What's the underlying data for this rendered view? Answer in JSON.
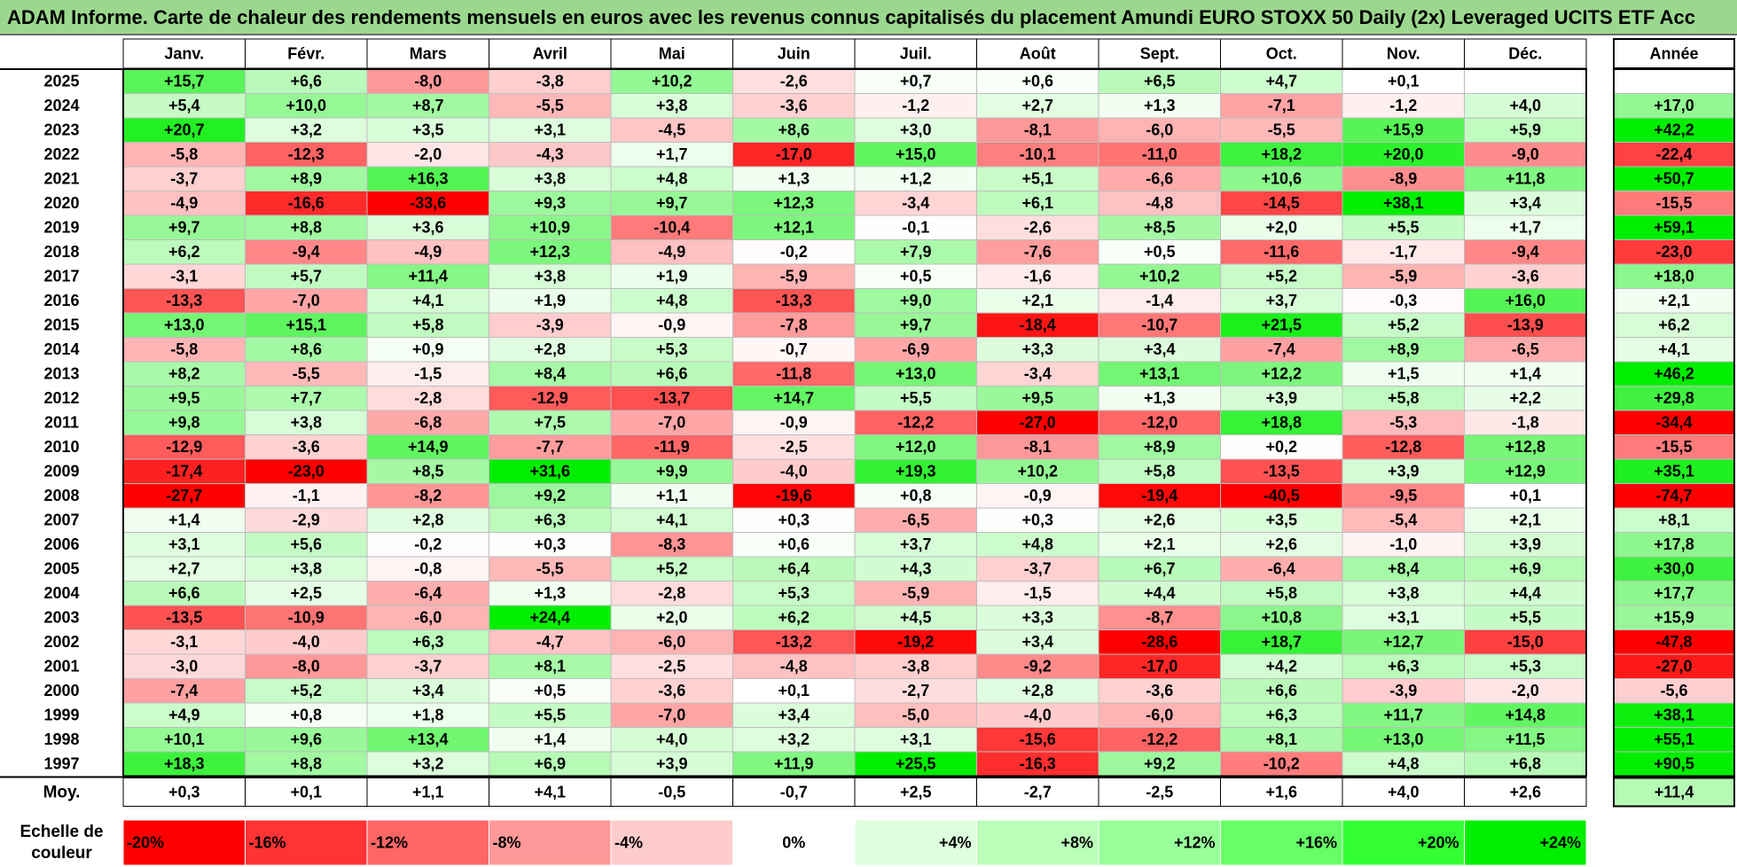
{
  "title": "ADAM Informe. Carte de chaleur des rendements mensuels en euros avec les revenus connus capitalisés du placement Amundi EURO STOXX 50 Daily (2x) Leveraged UCITS ETF Acc",
  "chart_data": {
    "type": "heatmap",
    "months": [
      "Janv.",
      "Févr.",
      "Mars",
      "Avril",
      "Mai",
      "Juin",
      "Juil.",
      "Août",
      "Sept.",
      "Oct.",
      "Nov.",
      "Déc."
    ],
    "year_column_label": "Année",
    "average_label": "Moy.",
    "rows": [
      {
        "year": "2025",
        "values": [
          "+15,7",
          "+6,6",
          "-8,0",
          "-3,8",
          "+10,2",
          "-2,6",
          "+0,7",
          "+0,6",
          "+6,5",
          "+4,7",
          "+0,1",
          ""
        ],
        "annual": ""
      },
      {
        "year": "2024",
        "values": [
          "+5,4",
          "+10,0",
          "+8,7",
          "-5,5",
          "+3,8",
          "-3,6",
          "-1,2",
          "+2,7",
          "+1,3",
          "-7,1",
          "-1,2",
          "+4,0"
        ],
        "annual": "+17,0"
      },
      {
        "year": "2023",
        "values": [
          "+20,7",
          "+3,2",
          "+3,5",
          "+3,1",
          "-4,5",
          "+8,6",
          "+3,0",
          "-8,1",
          "-6,0",
          "-5,5",
          "+15,9",
          "+5,9"
        ],
        "annual": "+42,2"
      },
      {
        "year": "2022",
        "values": [
          "-5,8",
          "-12,3",
          "-2,0",
          "-4,3",
          "+1,7",
          "-17,0",
          "+15,0",
          "-10,1",
          "-11,0",
          "+18,2",
          "+20,0",
          "-9,0"
        ],
        "annual": "-22,4"
      },
      {
        "year": "2021",
        "values": [
          "-3,7",
          "+8,9",
          "+16,3",
          "+3,8",
          "+4,8",
          "+1,3",
          "+1,2",
          "+5,1",
          "-6,6",
          "+10,6",
          "-8,9",
          "+11,8"
        ],
        "annual": "+50,7"
      },
      {
        "year": "2020",
        "values": [
          "-4,9",
          "-16,6",
          "-33,6",
          "+9,3",
          "+9,7",
          "+12,3",
          "-3,4",
          "+6,1",
          "-4,8",
          "-14,5",
          "+38,1",
          "+3,4"
        ],
        "annual": "-15,5"
      },
      {
        "year": "2019",
        "values": [
          "+9,7",
          "+8,8",
          "+3,6",
          "+10,9",
          "-10,4",
          "+12,1",
          "-0,1",
          "-2,6",
          "+8,5",
          "+2,0",
          "+5,5",
          "+1,7"
        ],
        "annual": "+59,1"
      },
      {
        "year": "2018",
        "values": [
          "+6,2",
          "-9,4",
          "-4,9",
          "+12,3",
          "-4,9",
          "-0,2",
          "+7,9",
          "-7,6",
          "+0,5",
          "-11,6",
          "-1,7",
          "-9,4"
        ],
        "annual": "-23,0"
      },
      {
        "year": "2017",
        "values": [
          "-3,1",
          "+5,7",
          "+11,4",
          "+3,8",
          "+1,9",
          "-5,9",
          "+0,5",
          "-1,6",
          "+10,2",
          "+5,2",
          "-5,9",
          "-3,6"
        ],
        "annual": "+18,0"
      },
      {
        "year": "2016",
        "values": [
          "-13,3",
          "-7,0",
          "+4,1",
          "+1,9",
          "+4,8",
          "-13,3",
          "+9,0",
          "+2,1",
          "-1,4",
          "+3,7",
          "-0,3",
          "+16,0"
        ],
        "annual": "+2,1"
      },
      {
        "year": "2015",
        "values": [
          "+13,0",
          "+15,1",
          "+5,8",
          "-3,9",
          "-0,9",
          "-7,8",
          "+9,7",
          "-18,4",
          "-10,7",
          "+21,5",
          "+5,2",
          "-13,9"
        ],
        "annual": "+6,2"
      },
      {
        "year": "2014",
        "values": [
          "-5,8",
          "+8,6",
          "+0,9",
          "+2,8",
          "+5,3",
          "-0,7",
          "-6,9",
          "+3,3",
          "+3,4",
          "-7,4",
          "+8,9",
          "-6,5"
        ],
        "annual": "+4,1"
      },
      {
        "year": "2013",
        "values": [
          "+8,2",
          "-5,5",
          "-1,5",
          "+8,4",
          "+6,6",
          "-11,8",
          "+13,0",
          "-3,4",
          "+13,1",
          "+12,2",
          "+1,5",
          "+1,4"
        ],
        "annual": "+46,2"
      },
      {
        "year": "2012",
        "values": [
          "+9,5",
          "+7,7",
          "-2,8",
          "-12,9",
          "-13,7",
          "+14,7",
          "+5,5",
          "+9,5",
          "+1,3",
          "+3,9",
          "+5,8",
          "+2,2"
        ],
        "annual": "+29,8"
      },
      {
        "year": "2011",
        "values": [
          "+9,8",
          "+3,8",
          "-6,8",
          "+7,5",
          "-7,0",
          "-0,9",
          "-12,2",
          "-27,0",
          "-12,0",
          "+18,8",
          "-5,3",
          "-1,8"
        ],
        "annual": "-34,4"
      },
      {
        "year": "2010",
        "values": [
          "-12,9",
          "-3,6",
          "+14,9",
          "-7,7",
          "-11,9",
          "-2,5",
          "+12,0",
          "-8,1",
          "+8,9",
          "+0,2",
          "-12,8",
          "+12,8"
        ],
        "annual": "-15,5"
      },
      {
        "year": "2009",
        "values": [
          "-17,4",
          "-23,0",
          "+8,5",
          "+31,6",
          "+9,9",
          "-4,0",
          "+19,3",
          "+10,2",
          "+5,8",
          "-13,5",
          "+3,9",
          "+12,9"
        ],
        "annual": "+35,1"
      },
      {
        "year": "2008",
        "values": [
          "-27,7",
          "-1,1",
          "-8,2",
          "+9,2",
          "+1,1",
          "-19,6",
          "+0,8",
          "-0,9",
          "-19,4",
          "-40,5",
          "-9,5",
          "+0,1"
        ],
        "annual": "-74,7"
      },
      {
        "year": "2007",
        "values": [
          "+1,4",
          "-2,9",
          "+2,8",
          "+6,3",
          "+4,1",
          "+0,3",
          "-6,5",
          "+0,3",
          "+2,6",
          "+3,5",
          "-5,4",
          "+2,1"
        ],
        "annual": "+8,1"
      },
      {
        "year": "2006",
        "values": [
          "+3,1",
          "+5,6",
          "-0,2",
          "+0,3",
          "-8,3",
          "+0,6",
          "+3,7",
          "+4,8",
          "+2,1",
          "+2,6",
          "-1,0",
          "+3,9"
        ],
        "annual": "+17,8"
      },
      {
        "year": "2005",
        "values": [
          "+2,7",
          "+3,8",
          "-0,8",
          "-5,5",
          "+5,2",
          "+6,4",
          "+4,3",
          "-3,7",
          "+6,7",
          "-6,4",
          "+8,4",
          "+6,9"
        ],
        "annual": "+30,0"
      },
      {
        "year": "2004",
        "values": [
          "+6,6",
          "+2,5",
          "-6,4",
          "+1,3",
          "-2,8",
          "+5,3",
          "-5,9",
          "-1,5",
          "+4,4",
          "+5,8",
          "+3,8",
          "+4,4"
        ],
        "annual": "+17,7"
      },
      {
        "year": "2003",
        "values": [
          "-13,5",
          "-10,9",
          "-6,0",
          "+24,4",
          "+2,0",
          "+6,2",
          "+4,5",
          "+3,3",
          "-8,7",
          "+10,8",
          "+3,1",
          "+5,5"
        ],
        "annual": "+15,9"
      },
      {
        "year": "2002",
        "values": [
          "-3,1",
          "-4,0",
          "+6,3",
          "-4,7",
          "-6,0",
          "-13,2",
          "-19,2",
          "+3,4",
          "-28,6",
          "+18,7",
          "+12,7",
          "-15,0"
        ],
        "annual": "-47,8"
      },
      {
        "year": "2001",
        "values": [
          "-3,0",
          "-8,0",
          "-3,7",
          "+8,1",
          "-2,5",
          "-4,8",
          "-3,8",
          "-9,2",
          "-17,0",
          "+4,2",
          "+6,3",
          "+5,3"
        ],
        "annual": "-27,0"
      },
      {
        "year": "2000",
        "values": [
          "-7,4",
          "+5,2",
          "+3,4",
          "+0,5",
          "-3,6",
          "+0,1",
          "-2,7",
          "+2,8",
          "-3,6",
          "+6,6",
          "-3,9",
          "-2,0"
        ],
        "annual": "-5,6"
      },
      {
        "year": "1999",
        "values": [
          "+4,9",
          "+0,8",
          "+1,8",
          "+5,5",
          "-7,0",
          "+3,4",
          "-5,0",
          "-4,0",
          "-6,0",
          "+6,3",
          "+11,7",
          "+14,8"
        ],
        "annual": "+38,1"
      },
      {
        "year": "1998",
        "values": [
          "+10,1",
          "+9,6",
          "+13,4",
          "+1,4",
          "+4,0",
          "+3,2",
          "+3,1",
          "-15,6",
          "-12,2",
          "+8,1",
          "+13,0",
          "+11,5"
        ],
        "annual": "+55,1"
      },
      {
        "year": "1997",
        "values": [
          "+18,3",
          "+8,8",
          "+3,2",
          "+6,9",
          "+3,9",
          "+11,9",
          "+25,5",
          "-16,3",
          "+9,2",
          "-10,2",
          "+4,8",
          "+6,8"
        ],
        "annual": "+90,5"
      }
    ],
    "average": {
      "values": [
        "+0,3",
        "+0,1",
        "+1,1",
        "+4,1",
        "-0,5",
        "-0,7",
        "+2,5",
        "-2,7",
        "-2,5",
        "+1,6",
        "+4,0",
        "+2,6"
      ],
      "annual": "+11,4"
    },
    "scale_label": "Echelle de couleur",
    "scale": [
      {
        "value": -20,
        "label": "-20%",
        "color": "#FF0000"
      },
      {
        "value": -16,
        "label": "-16%",
        "color": "#FF3333"
      },
      {
        "value": -12,
        "label": "-12%",
        "color": "#FF6666"
      },
      {
        "value": -8,
        "label": "-8%",
        "color": "#FF9999"
      },
      {
        "value": -4,
        "label": "-4%",
        "color": "#FFCCCC"
      },
      {
        "value": 0,
        "label": "0%",
        "color": "#FFFFFF"
      },
      {
        "value": 4,
        "label": "+4%",
        "color": "#DDFFDD"
      },
      {
        "value": 8,
        "label": "+8%",
        "color": "#BBFFBB"
      },
      {
        "value": 12,
        "label": "+12%",
        "color": "#99FF99"
      },
      {
        "value": 16,
        "label": "+16%",
        "color": "#66FF66"
      },
      {
        "value": 20,
        "label": "+20%",
        "color": "#33FF33"
      },
      {
        "value": 24,
        "label": "+24%",
        "color": "#00EE00"
      }
    ]
  }
}
